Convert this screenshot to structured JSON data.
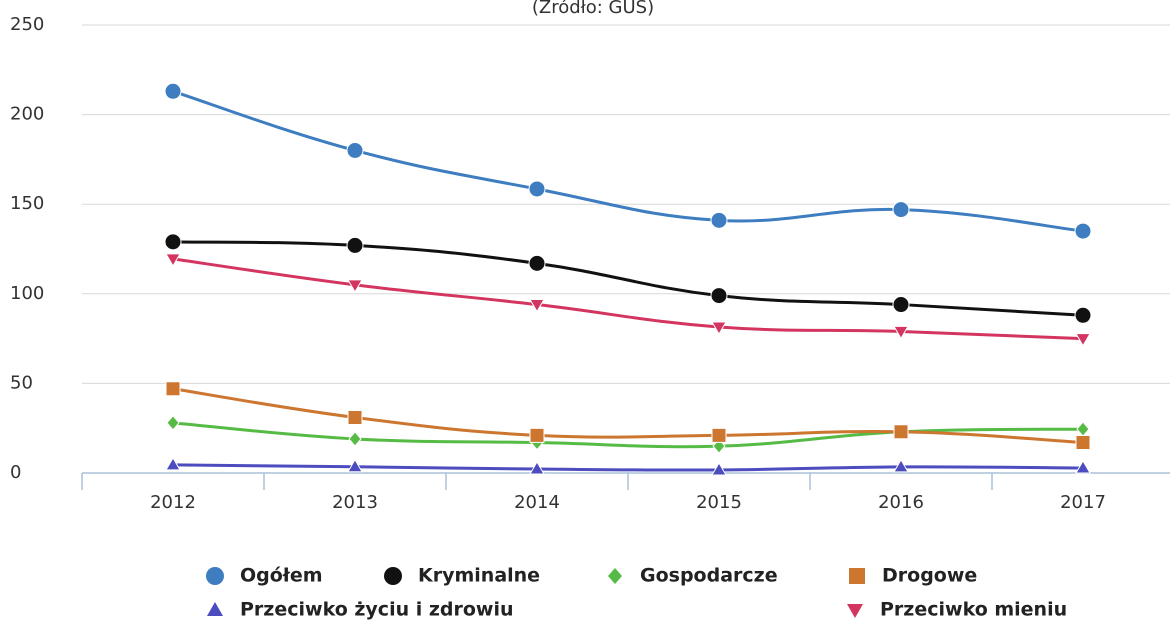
{
  "chart_data": {
    "type": "line",
    "subtitle": "(Źródło: GUS)",
    "categories": [
      "2012",
      "2013",
      "2014",
      "2015",
      "2016",
      "2017"
    ],
    "ylim": [
      0,
      250
    ],
    "yticks": [
      0,
      50,
      100,
      150,
      200,
      250
    ],
    "grid": true,
    "smooth": true,
    "legend": "bottom",
    "series": [
      {
        "name": "Ogółem",
        "color": "#3d7dc0",
        "marker": "circle",
        "values": [
          213,
          180,
          158.5,
          141,
          147,
          135
        ]
      },
      {
        "name": "Kryminalne",
        "color": "#111111",
        "marker": "circle",
        "values": [
          129,
          127,
          117,
          99,
          94,
          88
        ]
      },
      {
        "name": "Gospodarcze",
        "color": "#55bb44",
        "marker": "diamond",
        "values": [
          28,
          19,
          17,
          15,
          23,
          24.5
        ]
      },
      {
        "name": "Drogowe",
        "color": "#cc7630",
        "marker": "square",
        "values": [
          47,
          31,
          21,
          21,
          23,
          17
        ]
      },
      {
        "name": "Przeciwko życiu i zdrowiu",
        "color": "#4c4cbf",
        "marker": "triangle",
        "values": [
          4.5,
          3.5,
          2.2,
          1.7,
          3.4,
          2.8
        ]
      },
      {
        "name": "Przeciwko mieniu",
        "color": "#d33560",
        "marker": "triangle-down",
        "values": [
          119.5,
          105,
          94,
          81.5,
          79,
          75
        ]
      }
    ]
  }
}
